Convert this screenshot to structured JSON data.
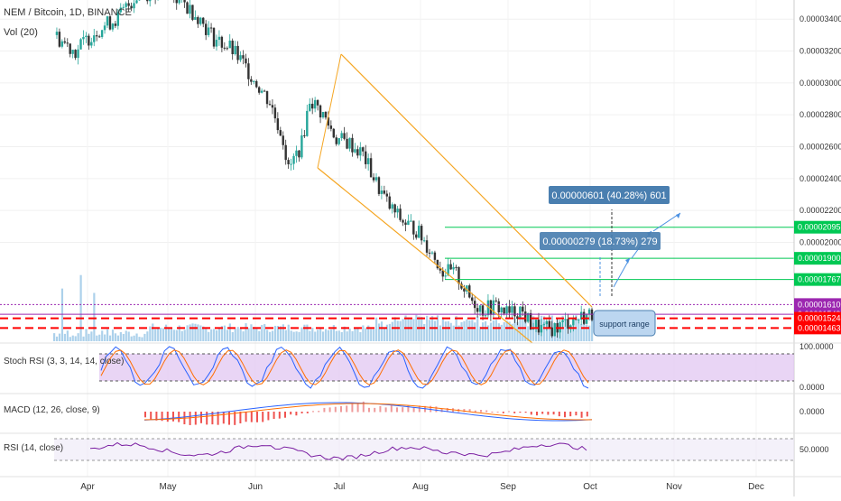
{
  "header": {
    "symbol": "NEM / Bitcoin, 1D, BINANCE",
    "volume_label": "Vol (20)"
  },
  "chart_data": [
    {
      "type": "candlestick",
      "title": "NEM / Bitcoin, 1D, BINANCE",
      "x_ticks": [
        "Apr",
        "May",
        "Jun",
        "Jul",
        "Aug",
        "Sep",
        "Oct",
        "Nov",
        "Dec"
      ],
      "y_ticks": [
        "0.00003400",
        "0.00003200",
        "0.00003000",
        "0.00002800",
        "0.00002600",
        "0.00002400",
        "0.00002200",
        "0.00002000"
      ],
      "ylim": [
        1.38e-05,
        3.52e-05
      ],
      "price_series": [
        {
          "x": 0,
          "y": 3.3e-05
        },
        {
          "x": 8,
          "y": 3.2e-05
        },
        {
          "x": 15,
          "y": 3.32e-05
        },
        {
          "x": 24,
          "y": 3.41e-05
        },
        {
          "x": 31,
          "y": 3.55e-05
        },
        {
          "x": 40,
          "y": 3.58e-05
        },
        {
          "x": 47,
          "y": 3.52e-05
        },
        {
          "x": 54,
          "y": 3.42e-05
        },
        {
          "x": 60,
          "y": 3.28e-05
        },
        {
          "x": 66,
          "y": 3.22e-05
        },
        {
          "x": 71,
          "y": 3.12e-05
        },
        {
          "x": 76,
          "y": 3e-05
        },
        {
          "x": 81,
          "y": 2.88e-05
        },
        {
          "x": 86,
          "y": 2.65e-05
        },
        {
          "x": 88,
          "y": 2.45e-05
        },
        {
          "x": 93,
          "y": 2.62e-05
        },
        {
          "x": 96,
          "y": 2.9e-05
        },
        {
          "x": 101,
          "y": 2.8e-05
        },
        {
          "x": 106,
          "y": 2.65e-05
        },
        {
          "x": 111,
          "y": 2.62e-05
        },
        {
          "x": 116,
          "y": 2.55e-05
        },
        {
          "x": 121,
          "y": 2.37e-05
        },
        {
          "x": 126,
          "y": 2.22e-05
        },
        {
          "x": 131,
          "y": 2.13e-05
        },
        {
          "x": 136,
          "y": 2.08e-05
        },
        {
          "x": 141,
          "y": 1.96e-05
        },
        {
          "x": 146,
          "y": 1.82e-05
        },
        {
          "x": 151,
          "y": 1.8e-05
        },
        {
          "x": 156,
          "y": 1.65e-05
        },
        {
          "x": 161,
          "y": 1.58e-05
        },
        {
          "x": 166,
          "y": 1.6e-05
        },
        {
          "x": 171,
          "y": 1.55e-05
        },
        {
          "x": 175,
          "y": 1.58e-05
        },
        {
          "x": 179,
          "y": 1.49e-05
        },
        {
          "x": 184,
          "y": 1.45e-05
        },
        {
          "x": 189,
          "y": 1.47e-05
        },
        {
          "x": 194,
          "y": 1.51e-05
        },
        {
          "x": 198,
          "y": 1.53e-05
        },
        {
          "x": 202,
          "y": 1.55e-05
        }
      ],
      "price_levels": [
        {
          "label": "0.00002095",
          "value": 2.095e-05,
          "color": "#00c853",
          "style": "solid"
        },
        {
          "label": "0.00001900",
          "value": 1.9e-05,
          "color": "#00c853",
          "style": "solid"
        },
        {
          "label": "0.00001767",
          "value": 1.767e-05,
          "color": "#00c853",
          "style": "solid"
        },
        {
          "label": "0.00001610",
          "value": 1.61e-05,
          "color": "#9c27b0",
          "style": "dotted"
        },
        {
          "label": "0.00001549",
          "value": 1.549e-05,
          "color": "#9c27b0",
          "style": "solid"
        },
        {
          "label": "0.00001524",
          "value": 1.524e-05,
          "color": "#ff0000",
          "style": "dashed"
        },
        {
          "label": "0.00001463",
          "value": 1.463e-05,
          "color": "#ff0000",
          "style": "dashed"
        }
      ],
      "callouts": [
        {
          "text": "0.00000601 (40.28%) 601"
        },
        {
          "text": "0.00000279 (18.73%) 279"
        },
        {
          "text": "support range"
        }
      ],
      "drawings": [
        "descending channel (orange)",
        "projection arrows (blue)"
      ]
    },
    {
      "type": "line",
      "title": "Stoch RSI (3, 3, 14, 14, close)",
      "y_ticks": [
        "100.0000",
        "0.0000"
      ],
      "ylim": [
        -10,
        115
      ],
      "bands": [
        20,
        80
      ]
    },
    {
      "type": "bar",
      "title": "MACD (12, 26, close, 9)",
      "y_ticks": [
        "0.0000"
      ]
    },
    {
      "type": "line",
      "title": "RSI (14, close)",
      "y_ticks": [
        "50.0000"
      ],
      "bands": [
        30,
        70
      ]
    }
  ],
  "colors": {
    "up": "#26a69a",
    "down": "#333333",
    "volume": "#9ec9e8",
    "channel": "#f5a623",
    "level_green": "#00c853",
    "level_red": "#ff0000",
    "level_purple": "#9c27b0",
    "callout_bg": "#4a7fb0",
    "stoch_fill": "#e1c7f2"
  }
}
